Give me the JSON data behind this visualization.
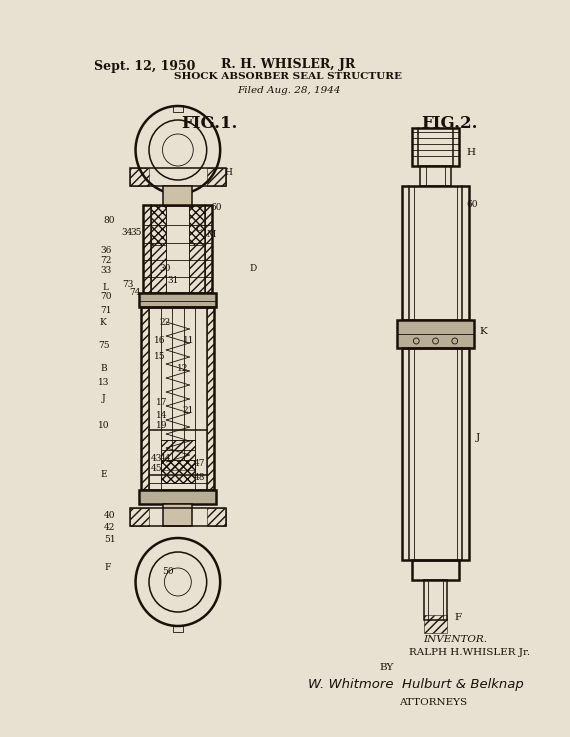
{
  "bg_color": "#e8e0d0",
  "line_color": "#1a1008",
  "title_line1": "R. H. WHISLER, JR",
  "title_line2": "SHOCK ABSORBER SEAL STRUCTURE",
  "filed": "Filed Aug. 28, 1944",
  "date": "Sept. 12, 1950",
  "fig1_label": "FIG.1.",
  "fig2_label": "FIG.2.",
  "inventor_line1": "INVENTOR.",
  "inventor_line2": "RALPH H.WHISLER Jr.",
  "by_line": "BY",
  "attorneys": "ATTORNEYS",
  "fig_width": 5.7,
  "fig_height": 7.37
}
